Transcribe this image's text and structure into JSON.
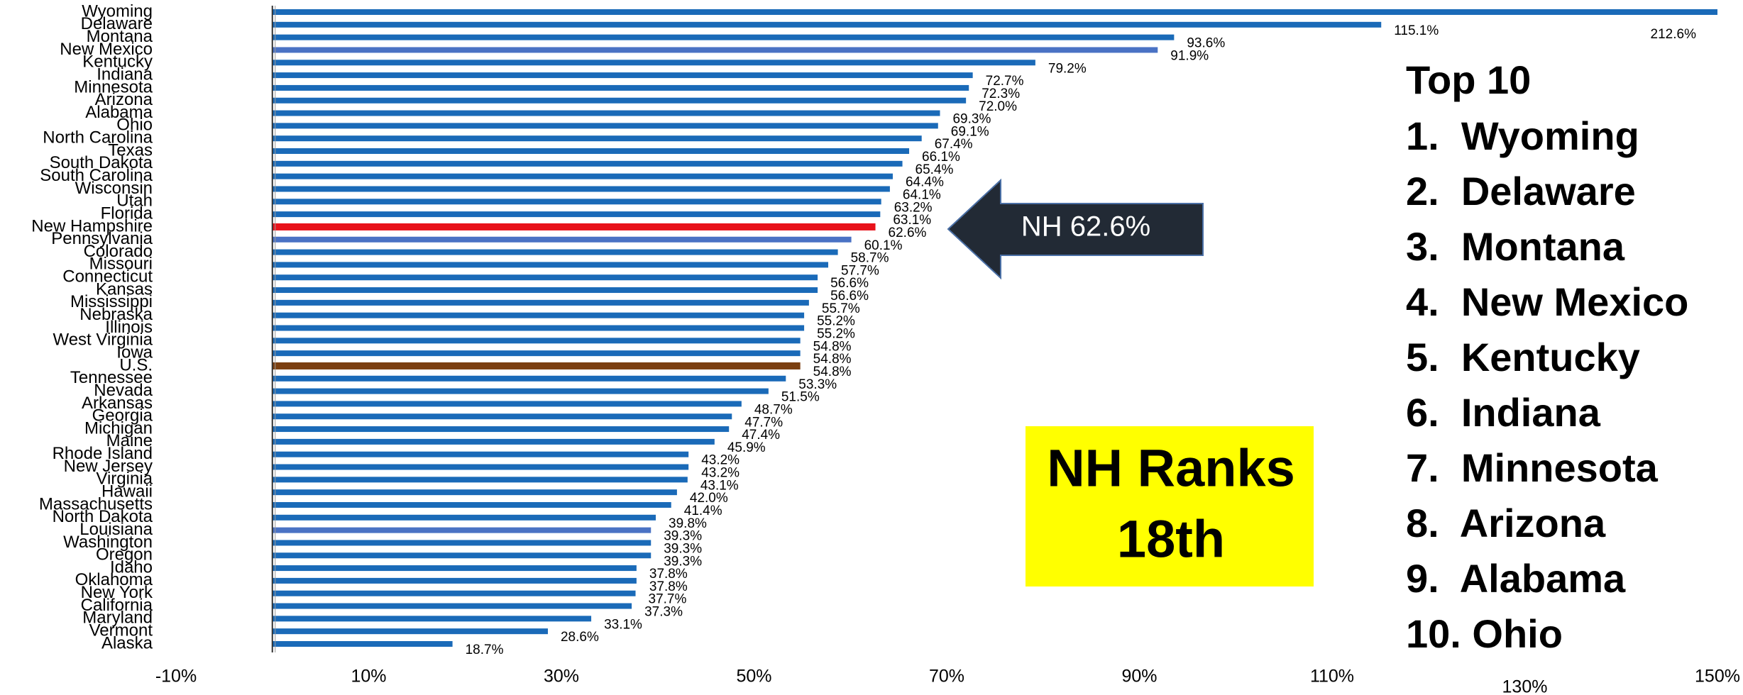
{
  "chart_data": {
    "type": "bar",
    "orientation": "horizontal",
    "categories": [
      "Wyoming",
      "Delaware",
      "Montana",
      "New Mexico",
      "Kentucky",
      "Indiana",
      "Minnesota",
      "Arizona",
      "Alabama",
      "Ohio",
      "North Carolina",
      "Texas",
      "South Dakota",
      "South Carolina",
      "Wisconsin",
      "Utah",
      "Florida",
      "New Hampshire",
      "Pennsylvania",
      "Colorado",
      "Missouri",
      "Connecticut",
      "Kansas",
      "Mississippi",
      "Nebraska",
      "Illinois",
      "West Virginia",
      "Iowa",
      "U.S.",
      "Tennessee",
      "Nevada",
      "Arkansas",
      "Georgia",
      "Michigan",
      "Maine",
      "Rhode Island",
      "New Jersey",
      "Virginia",
      "Hawaii",
      "Massachusetts",
      "North Dakota",
      "Louisiana",
      "Washington",
      "Oregon",
      "Idaho",
      "Oklahoma",
      "New York",
      "California",
      "Maryland",
      "Vermont",
      "Alaska"
    ],
    "values": [
      212.6,
      115.1,
      93.6,
      91.9,
      79.2,
      72.7,
      72.3,
      72.0,
      69.3,
      69.1,
      67.4,
      66.1,
      65.4,
      64.4,
      64.1,
      63.2,
      63.1,
      62.6,
      60.1,
      58.7,
      57.7,
      56.6,
      56.6,
      55.7,
      55.2,
      55.2,
      54.8,
      54.8,
      54.8,
      53.3,
      51.5,
      48.7,
      47.7,
      47.4,
      45.9,
      43.2,
      43.2,
      43.1,
      42.0,
      41.4,
      39.8,
      39.3,
      39.3,
      39.3,
      37.8,
      37.8,
      37.7,
      37.3,
      33.1,
      28.6,
      18.7
    ],
    "value_labels": [
      "212.6%",
      "115.1%",
      "93.6%",
      "91.9%",
      "79.2%",
      "72.7%",
      "72.3%",
      "72.0%",
      "69.3%",
      "69.1%",
      "67.4%",
      "66.1%",
      "65.4%",
      "64.4%",
      "64.1%",
      "63.2%",
      "63.1%",
      "62.6%",
      "60.1%",
      "58.7%",
      "57.7%",
      "56.6%",
      "56.6%",
      "55.7%",
      "55.2%",
      "55.2%",
      "54.8%",
      "54.8%",
      "54.8%",
      "53.3%",
      "51.5%",
      "48.7%",
      "47.7%",
      "47.4%",
      "45.9%",
      "43.2%",
      "43.2%",
      "43.1%",
      "42.0%",
      "41.4%",
      "39.8%",
      "39.3%",
      "39.3%",
      "39.3%",
      "37.8%",
      "37.8%",
      "37.7%",
      "37.3%",
      "33.1%",
      "28.6%",
      "18.7%"
    ],
    "colors": [
      "#1a6ab8",
      "#1a6ab8",
      "#1a6ab8",
      "#4a72c4",
      "#1a6ab8",
      "#1a6ab8",
      "#1a6ab8",
      "#1a6ab8",
      "#1a6ab8",
      "#1a6ab8",
      "#1a6ab8",
      "#1a6ab8",
      "#1a6ab8",
      "#1a6ab8",
      "#1a6ab8",
      "#1a6ab8",
      "#1a6ab8",
      "#e8121a",
      "#4a72c4",
      "#1a6ab8",
      "#1a6ab8",
      "#1a6ab8",
      "#1a6ab8",
      "#1a6ab8",
      "#1a6ab8",
      "#1a6ab8",
      "#1a6ab8",
      "#1a6ab8",
      "#7b3f10",
      "#1a6ab8",
      "#1a6ab8",
      "#1a6ab8",
      "#1a6ab8",
      "#1a6ab8",
      "#1a6ab8",
      "#1a6ab8",
      "#1a6ab8",
      "#1a6ab8",
      "#1a6ab8",
      "#1a6ab8",
      "#1a6ab8",
      "#4a72c4",
      "#1a6ab8",
      "#1a6ab8",
      "#1a6ab8",
      "#1a6ab8",
      "#1a6ab8",
      "#1a6ab8",
      "#1a6ab8",
      "#1a6ab8",
      "#1a6ab8"
    ],
    "xlim": [
      -10,
      150
    ],
    "xticks": [
      {
        "value": -10,
        "label": "-10%"
      },
      {
        "value": 10,
        "label": "10%"
      },
      {
        "value": 30,
        "label": "30%"
      },
      {
        "value": 50,
        "label": "50%"
      },
      {
        "value": 70,
        "label": "70%"
      },
      {
        "value": 90,
        "label": "90%"
      },
      {
        "value": 110,
        "label": "110%"
      },
      {
        "value": 130,
        "label": "130%"
      },
      {
        "value": 150,
        "label": "150%"
      }
    ],
    "grid": false,
    "annotations": {
      "callout": "NH 62.6%",
      "rank_box": [
        "NH Ranks",
        "18th"
      ],
      "top10_title": "Top 10",
      "top10": [
        "1.  Wyoming",
        "2.  Delaware",
        "3.  Montana",
        "4.  New Mexico",
        "5.  Kentucky",
        "6.  Indiana",
        "7.  Minnesota",
        "8.  Arizona",
        "9.  Alabama",
        "10. Ohio"
      ]
    }
  }
}
